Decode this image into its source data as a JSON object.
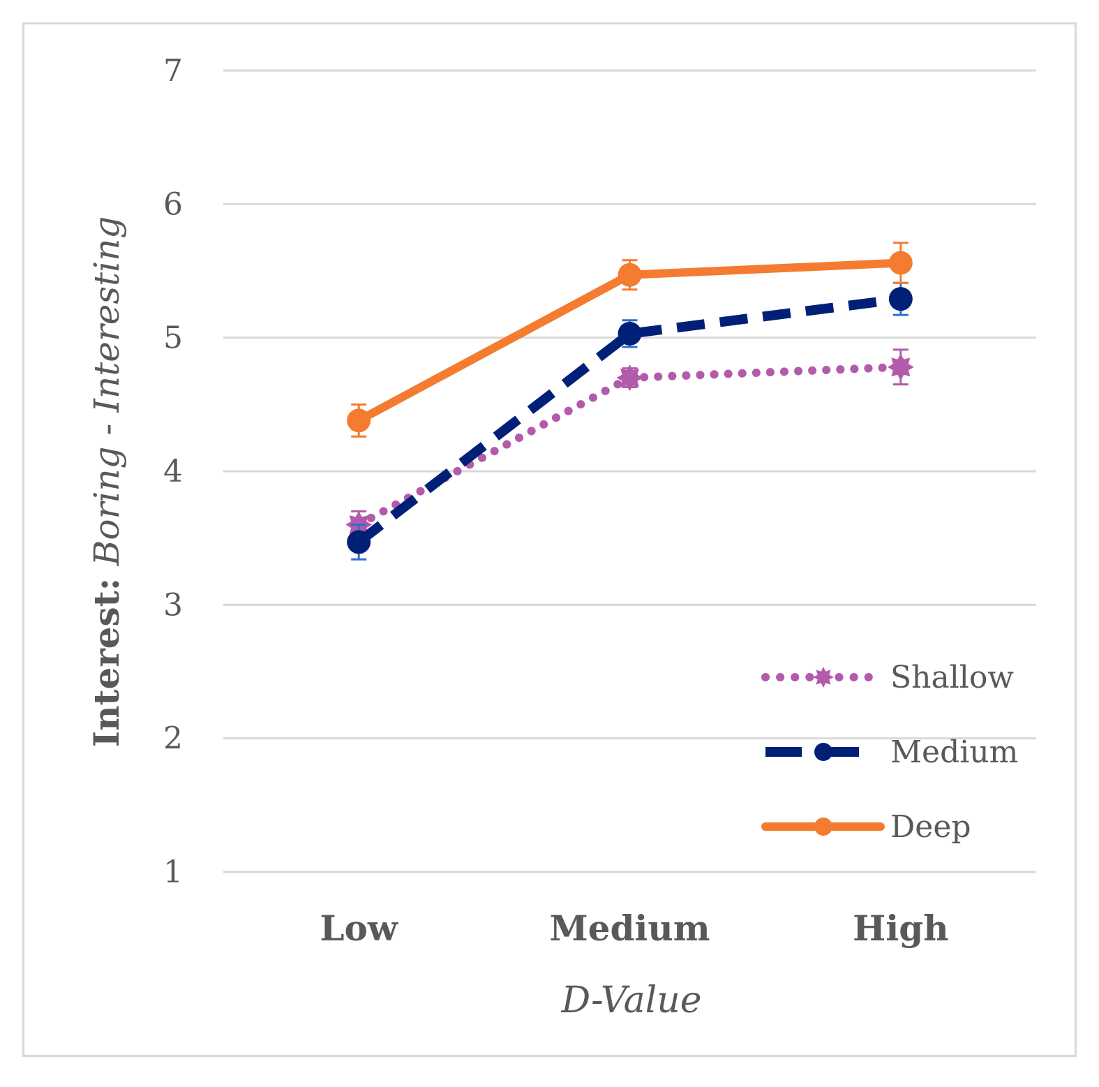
{
  "chart_data": {
    "type": "line",
    "categories": [
      "Low",
      "Medium",
      "High"
    ],
    "xlabel": "D-Value",
    "ylabel_prefix": "Interest: ",
    "ylabel_italic": "Boring - Interesting",
    "ylim": [
      1,
      7
    ],
    "yticks": [
      1,
      2,
      3,
      4,
      5,
      6,
      7
    ],
    "grid": true,
    "legend_position": "bottom-right",
    "series": [
      {
        "name": "Shallow",
        "values": [
          3.6,
          4.7,
          4.78
        ],
        "errors": [
          0.1,
          0.07,
          0.13
        ],
        "color": "#b45aaa",
        "style": "dotted",
        "marker": "star"
      },
      {
        "name": "Medium",
        "values": [
          3.47,
          5.03,
          5.29
        ],
        "errors": [
          0.13,
          0.1,
          0.12
        ],
        "color": "#002078",
        "style": "dashed",
        "marker": "circle"
      },
      {
        "name": "Deep",
        "values": [
          4.38,
          5.47,
          5.56
        ],
        "errors": [
          0.12,
          0.11,
          0.15
        ],
        "color": "#f47c30",
        "style": "solid",
        "marker": "circle"
      }
    ]
  }
}
